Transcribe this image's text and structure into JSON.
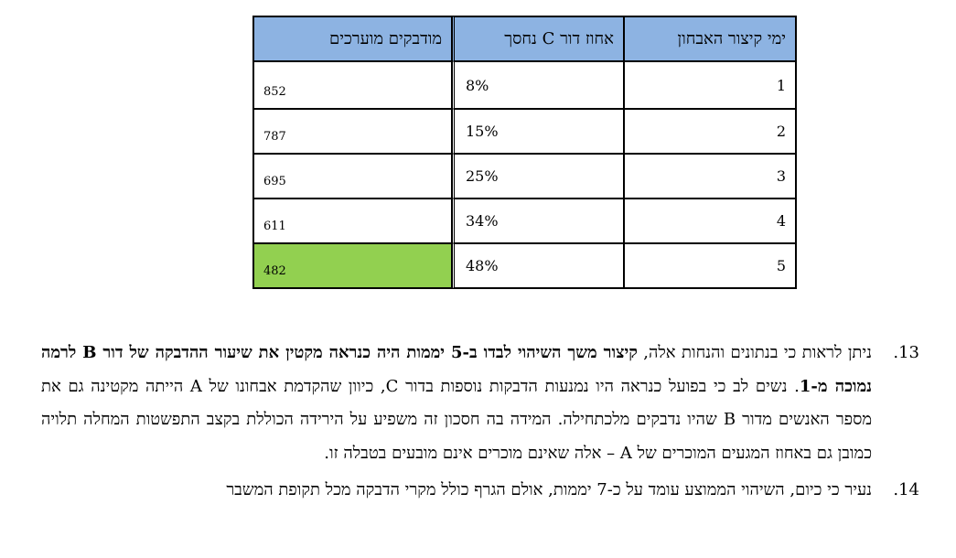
{
  "table": {
    "headers": [
      "ימי קיצור האבחון",
      "אחוז דור C נחסך",
      "מודבקים מוערכים"
    ],
    "rows": [
      {
        "day": "1",
        "pct": "8%",
        "inf": "852"
      },
      {
        "day": "2",
        "pct": "15%",
        "inf": "787"
      },
      {
        "day": "3",
        "pct": "25%",
        "inf": "695"
      },
      {
        "day": "4",
        "pct": "34%",
        "inf": "611"
      },
      {
        "day": "5",
        "pct": "48%",
        "inf": "482"
      }
    ],
    "highlight_color": "#92d050",
    "header_color": "#8db3e2"
  },
  "paragraphs": [
    {
      "number": "13.",
      "text_plain_1": "ניתן לראות כי בנתונים והנחות אלה, ",
      "text_bold_1": "קיצור משך השיהוי לבדו ב-5 יממות היה כנראה מקטין את שיעור ההדבקה של דור B לרמה נמוכה מ-1",
      "text_plain_2": ". נשים לב כי בפועל כנראה היו נמנעות הדבקות נוספות בדור C, כיוון שהקדמת אבחונו של A הייתה מקטינה גם את מספר האנשים מדור B שהיו נדבקים מלכתחילה. המידה בה חסכון זה משפיע על הירידה הכוללת בקצב התפשטות המחלה תלויה כמובן גם באחוז המגעים המוכרים של A – אלה שאינם מוכרים אינם מובעים בטבלה זו."
    },
    {
      "number": "14.",
      "text_plain_1": "נעיר כי כיום, השיהוי הממוצע עומד על כ-7 יממות, אולם הגרף כולל מקרי הדבקה מכל תקופת המשבר"
    }
  ]
}
